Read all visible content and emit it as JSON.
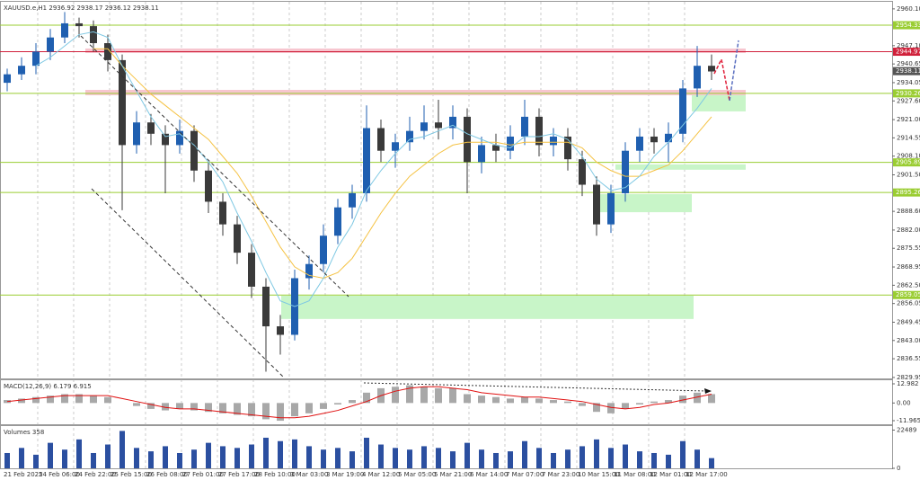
{
  "chart_data": [
    {
      "type": "candlestick",
      "title": "XAUUSD.e,H1 2936.92 2938.17 2936.12 2938.11",
      "ylim": [
        2829.6,
        2962.6
      ],
      "yticks": [
        {
          "value": 2960.1,
          "label": "2960.10"
        },
        {
          "value": 2947.1,
          "label": "2947.10"
        },
        {
          "value": 2940.65,
          "label": "2940.65"
        },
        {
          "value": 2934.05,
          "label": "2934.05"
        },
        {
          "value": 2927.6,
          "label": "2927.60"
        },
        {
          "value": 2921,
          "label": "2921.00"
        },
        {
          "value": 2914.55,
          "label": "2914.55"
        },
        {
          "value": 2908.1,
          "label": "2908.10"
        },
        {
          "value": 2901.5,
          "label": "2901.50"
        },
        {
          "value": 2888.6,
          "label": "2888.60"
        },
        {
          "value": 2882,
          "label": "2882.00"
        },
        {
          "value": 2875.55,
          "label": "2875.55"
        },
        {
          "value": 2868.95,
          "label": "2868.95"
        },
        {
          "value": 2862.5,
          "label": "2862.50"
        },
        {
          "value": 2856.05,
          "label": "2856.05"
        },
        {
          "value": 2849.45,
          "label": "2849.45"
        },
        {
          "value": 2843,
          "label": "2843.00"
        },
        {
          "value": 2836.55,
          "label": "2836.55"
        },
        {
          "value": 2829.95,
          "label": "2829.95"
        }
      ],
      "time_labels": [
        "21 Feb 2025",
        "24 Feb 06:00",
        "24 Feb 22:00",
        "25 Feb 15:00",
        "26 Feb 08:00",
        "27 Feb 01:00",
        "27 Feb 17:00",
        "28 Feb 10:00",
        "3 Mar 03:00",
        "3 Mar 19:00",
        "4 Mar 12:00",
        "5 Mar 05:00",
        "5 Mar 21:00",
        "6 Mar 14:00",
        "7 Mar 07:00",
        "7 Mar 23:00",
        "10 Mar 15:00",
        "11 Mar 08:00",
        "12 Mar 01:00",
        "12 Mar 17:00"
      ],
      "bull_color": "#1f5fb0",
      "bear_color": "#3a3a3a",
      "open": [
        2934,
        2937,
        2940,
        2945,
        2950,
        2955,
        2954,
        2948,
        2942,
        2912,
        2920,
        2916,
        2912,
        2917,
        2903,
        2892,
        2884,
        2874,
        2862,
        2848,
        2845,
        2865,
        2870,
        2880,
        2890,
        2895,
        2918,
        2910,
        2913,
        2917,
        2920,
        2918,
        2922,
        2906,
        2912,
        2910,
        2915,
        2922,
        2912,
        2915,
        2907,
        2898,
        2884,
        2895,
        2910,
        2915,
        2913,
        2916,
        2932,
        2940
      ],
      "high": [
        2939,
        2943,
        2948,
        2953,
        2959,
        2957,
        2956,
        2951,
        2944,
        2924,
        2923,
        2919,
        2921,
        2919,
        2906,
        2895,
        2887,
        2877,
        2865,
        2852,
        2868,
        2873,
        2884,
        2893,
        2898,
        2926,
        2921,
        2916,
        2922,
        2926,
        2928,
        2926,
        2925,
        2915,
        2916,
        2919,
        2928,
        2925,
        2918,
        2918,
        2910,
        2901,
        2898,
        2913,
        2918,
        2918,
        2920,
        2935,
        2947,
        2944
      ],
      "low": [
        2931,
        2935,
        2937,
        2942,
        2948,
        2950,
        2945,
        2938,
        2889,
        2909,
        2912,
        2895,
        2909,
        2899,
        2888,
        2880,
        2870,
        2858,
        2832,
        2838,
        2843,
        2861,
        2867,
        2877,
        2886,
        2892,
        2906,
        2904,
        2910,
        2914,
        2914,
        2914,
        2895,
        2902,
        2906,
        2907,
        2912,
        2908,
        2908,
        2903,
        2894,
        2880,
        2881,
        2892,
        2906,
        2909,
        2906,
        2913,
        2929,
        2935
      ],
      "close": [
        2937,
        2940,
        2945,
        2950,
        2955,
        2954,
        2948,
        2942,
        2912,
        2920,
        2916,
        2912,
        2917,
        2903,
        2892,
        2884,
        2874,
        2862,
        2848,
        2845,
        2865,
        2870,
        2880,
        2890,
        2895,
        2918,
        2910,
        2913,
        2917,
        2920,
        2918,
        2922,
        2906,
        2912,
        2910,
        2915,
        2922,
        2912,
        2915,
        2907,
        2898,
        2884,
        2895,
        2910,
        2915,
        2913,
        2916,
        2932,
        2940,
        2938
      ],
      "ma_fast": {
        "color": "#7ec8e3",
        "values": [
          null,
          null,
          2940,
          2943,
          2947,
          2951,
          2952,
          2950,
          2940,
          2931,
          2922,
          2915,
          2916,
          2912,
          2906,
          2899,
          2888,
          2878,
          2867,
          2857,
          2855,
          2857,
          2865,
          2876,
          2884,
          2896,
          2903,
          2909,
          2914,
          2915,
          2917,
          2919,
          2916,
          2914,
          2912,
          2911,
          2915,
          2915,
          2916,
          2914,
          2908,
          2900,
          2896,
          2897,
          2901,
          2908,
          2913,
          2919,
          2925,
          2932
        ]
      },
      "ma_slow": {
        "color": "#f5c242",
        "values": [
          null,
          null,
          null,
          null,
          null,
          null,
          2946,
          2946,
          2940,
          2935,
          2930,
          2926,
          2922,
          2918,
          2914,
          2908,
          2902,
          2894,
          2885,
          2876,
          2869,
          2866,
          2865,
          2867,
          2872,
          2880,
          2888,
          2895,
          2901,
          2905,
          2909,
          2912,
          2913,
          2913,
          2913,
          2912,
          2913,
          2913,
          2913,
          2913,
          2911,
          2906,
          2903,
          2901,
          2901,
          2903,
          2905,
          2910,
          2916,
          2922
        ]
      },
      "levels": [
        {
          "value": 2954.33,
          "label": "2954.33",
          "color": "#9acd32"
        },
        {
          "value": 2944.97,
          "label": "2944.97",
          "color": "#d0203a"
        },
        {
          "value": 2930.26,
          "label": "2930.26",
          "color": "#9acd32"
        },
        {
          "value": 2905.89,
          "label": "2905.89",
          "color": "#9acd32"
        },
        {
          "value": 2895.26,
          "label": "2895.26",
          "color": "#9acd32"
        },
        {
          "value": 2859.05,
          "label": "2859.05",
          "color": "#9acd32"
        }
      ],
      "last_price": {
        "value": 2938.11,
        "label": "2938.11"
      },
      "zones": [
        {
          "from": 2946.1,
          "to": 2944.5,
          "color": "#f7c6cf"
        },
        {
          "from": 2931.5,
          "to": 2929.6,
          "color": "#f7c6cf"
        },
        {
          "from": 2929.6,
          "to": 2923.9,
          "color": "#c8f5c8"
        },
        {
          "from": 2905.2,
          "to": 2903.3,
          "color": "#c8f5c8"
        },
        {
          "from": 2894.7,
          "to": 2888.3,
          "color": "#c8f5c8"
        },
        {
          "from": 2858.8,
          "to": 2850.6,
          "color": "#c8f5c8"
        }
      ]
    },
    {
      "type": "macd",
      "title": "MACD(12,26,9) 6.179 6.915",
      "ylim": [
        -14.4,
        15.42
      ],
      "yticks": [
        {
          "value": 12.982,
          "label": "12.982"
        },
        {
          "value": 0,
          "label": "0.00"
        },
        {
          "value": -11.965,
          "label": "-11.965"
        }
      ],
      "hist_color": "#a8a8a8",
      "signal_color": "#e01010",
      "histogram": [
        2,
        3,
        4,
        5,
        6,
        6,
        5,
        4,
        0,
        -2,
        -4,
        -5,
        -4,
        -5,
        -6,
        -7,
        -8,
        -9,
        -11,
        -12,
        -9,
        -7,
        -4,
        -1,
        2,
        7,
        10,
        11,
        12,
        11,
        10,
        10,
        6,
        5,
        4,
        3,
        4,
        3,
        2,
        1,
        -2,
        -6,
        -7,
        -4,
        -1,
        1,
        2,
        5,
        7,
        6
      ],
      "signal": [
        1,
        2,
        3,
        4,
        5,
        5,
        5,
        5,
        3,
        1,
        -1,
        -3,
        -4,
        -4,
        -5,
        -6,
        -7,
        -8,
        -9,
        -10,
        -10,
        -9,
        -7,
        -5,
        -2,
        1,
        5,
        8,
        10,
        11,
        11,
        10,
        9,
        7,
        6,
        5,
        4,
        4,
        3,
        2,
        1,
        -1,
        -3,
        -4,
        -3,
        -1,
        0,
        2,
        4,
        6
      ]
    },
    {
      "type": "volume",
      "title": "Volumes 358",
      "ylim": [
        0,
        24860
      ],
      "yticks": [
        22489,
        0
      ],
      "color": "#2b4fa0",
      "values": [
        9000,
        12000,
        8000,
        15000,
        11000,
        17000,
        9000,
        14000,
        22000,
        12000,
        10000,
        13000,
        9000,
        11000,
        15000,
        13000,
        12000,
        14000,
        18000,
        16000,
        17000,
        13000,
        11000,
        12000,
        10000,
        18000,
        14000,
        12000,
        11000,
        13000,
        12000,
        10000,
        15000,
        11000,
        9000,
        10000,
        16000,
        12000,
        9000,
        11000,
        13000,
        17000,
        12000,
        14000,
        10000,
        9000,
        8000,
        16000,
        11000,
        6000
      ]
    }
  ]
}
